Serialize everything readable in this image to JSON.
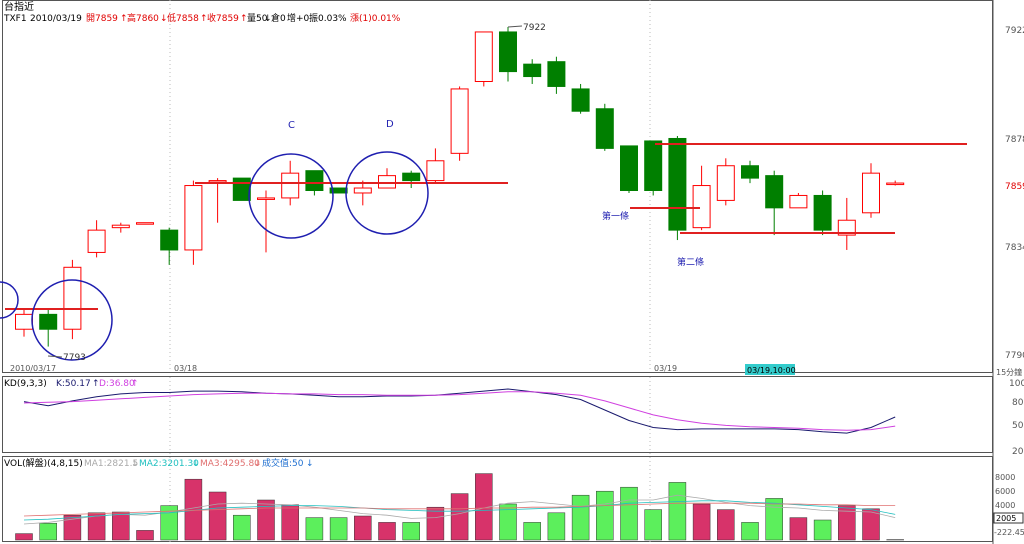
{
  "header": {
    "title": "台指近",
    "symbol": "TXF1",
    "date": "2010/03/19",
    "open_label": "開7859",
    "open_arrow": "↑",
    "high_label": "高7860",
    "high_arrow": "↓",
    "low_label": "低7858",
    "low_arrow": "↑",
    "close_label": "收7859",
    "close_arrow": "↑",
    "vol_label": "量50",
    "vol_arrow": "↓",
    "oi_label": "倉0",
    "oi_change_label": "增+0",
    "amp_label": "振0.03%",
    "chg_label": "漲(1)0.01%"
  },
  "kd_panel": {
    "label": "KD(9,3,3)",
    "k_label": "K:50.17",
    "k_arrow": "↑",
    "d_label": "D:36.80",
    "d_arrow": "↑"
  },
  "vol_panel": {
    "label": "VOL(解盤)(4,8,15)",
    "ma1_label": "MA1:2821.5",
    "ma1_arrow": "↓",
    "ma2_label": "MA2:3201.30",
    "ma2_arrow": "↓",
    "ma3_label": "MA3:4295.80",
    "ma3_arrow": "↓",
    "vol_value_label": "成交值:50",
    "vol_value_arrow": "↓"
  },
  "xaxis": {
    "date1": "2010/03/17",
    "date2": "03/18",
    "date3": "03/19",
    "cursor_label": "03/19,10:00",
    "interval_label": "15分鐘"
  },
  "annotations": {
    "c": "C",
    "d": "D",
    "high_label": "7922",
    "low_label": "7793",
    "first_line": "第一條",
    "second_line": "第二條"
  },
  "colors": {
    "up": "#ff0000",
    "down": "#007f00",
    "vol_up": "#d7336a",
    "vol_down": "#5cef5c",
    "k_line": "#1a1a6e",
    "d_line": "#d040e0",
    "circle": "#1f1fb0",
    "hline": "#e02020",
    "cursor_bg": "#33cccc"
  },
  "chart_data": {
    "type": "candlestick",
    "price_axis_ticks": [
      7922,
      7878,
      7859,
      7834,
      7790
    ],
    "kd_axis_ticks": [
      100,
      80,
      50,
      20
    ],
    "vol_axis_ticks": [
      8000,
      6000,
      4000,
      2005
    ],
    "vol_cursor_value": "2005",
    "vol_bottom_value": "-222.45",
    "candles": [
      {
        "o": 7800,
        "c": 7806,
        "h": 7808,
        "l": 7797
      },
      {
        "o": 7806,
        "c": 7800,
        "h": 7808,
        "l": 7793
      },
      {
        "o": 7800,
        "c": 7825,
        "h": 7828,
        "l": 7796
      },
      {
        "o": 7831,
        "c": 7840,
        "h": 7844,
        "l": 7829
      },
      {
        "o": 7841,
        "c": 7842,
        "h": 7843,
        "l": 7839
      },
      {
        "o": 7843,
        "c": 7843,
        "h": 7843,
        "l": 7843
      },
      {
        "o": 7840,
        "c": 7832,
        "h": 7841,
        "l": 7826
      },
      {
        "o": 7832,
        "c": 7858,
        "h": 7860,
        "l": 7826
      },
      {
        "o": 7860,
        "c": 7860,
        "h": 7861,
        "l": 7843
      },
      {
        "o": 7861,
        "c": 7852,
        "h": 7861,
        "l": 7852
      },
      {
        "o": 7853,
        "c": 7853,
        "h": 7856,
        "l": 7831
      },
      {
        "o": 7853,
        "c": 7863,
        "h": 7868,
        "l": 7850
      },
      {
        "o": 7864,
        "c": 7856,
        "h": 7864,
        "l": 7854
      },
      {
        "o": 7857,
        "c": 7855,
        "h": 7857,
        "l": 7855
      },
      {
        "o": 7855,
        "c": 7857,
        "h": 7860,
        "l": 7850
      },
      {
        "o": 7857,
        "c": 7862,
        "h": 7865,
        "l": 7858
      },
      {
        "o": 7863,
        "c": 7860,
        "h": 7864,
        "l": 7857
      },
      {
        "o": 7860,
        "c": 7868,
        "h": 7873,
        "l": 7859
      },
      {
        "o": 7871,
        "c": 7897,
        "h": 7898,
        "l": 7868
      },
      {
        "o": 7900,
        "c": 7920,
        "h": 7920,
        "l": 7898
      },
      {
        "o": 7920,
        "c": 7904,
        "h": 7922,
        "l": 7900
      },
      {
        "o": 7907,
        "c": 7902,
        "h": 7909,
        "l": 7899
      },
      {
        "o": 7908,
        "c": 7898,
        "h": 7910,
        "l": 7895
      },
      {
        "o": 7897,
        "c": 7888,
        "h": 7899,
        "l": 7887
      },
      {
        "o": 7889,
        "c": 7873,
        "h": 7891,
        "l": 7872
      },
      {
        "o": 7874,
        "c": 7856,
        "h": 7874,
        "l": 7855
      },
      {
        "o": 7876,
        "c": 7856,
        "h": 7876,
        "l": 7854
      },
      {
        "o": 7877,
        "c": 7840,
        "h": 7878,
        "l": 7836
      },
      {
        "o": 7841,
        "c": 7858,
        "h": 7866,
        "l": 7840
      },
      {
        "o": 7852,
        "c": 7866,
        "h": 7869,
        "l": 7850
      },
      {
        "o": 7866,
        "c": 7861,
        "h": 7868,
        "l": 7859
      },
      {
        "o": 7862,
        "c": 7849,
        "h": 7864,
        "l": 7838
      },
      {
        "o": 7849,
        "c": 7854,
        "h": 7855,
        "l": 7849
      },
      {
        "o": 7854,
        "c": 7840,
        "h": 7856,
        "l": 7838
      },
      {
        "o": 7838,
        "c": 7844,
        "h": 7853,
        "l": 7832
      },
      {
        "o": 7847,
        "c": 7863,
        "h": 7867,
        "l": 7845
      },
      {
        "o": 7859,
        "c": 7859,
        "h": 7860,
        "l": 7858
      }
    ],
    "k_values": [
      72,
      66,
      73,
      79,
      83,
      85,
      85,
      87,
      87,
      86,
      84,
      83,
      81,
      79,
      79,
      80,
      80,
      81,
      84,
      87,
      90,
      86,
      82,
      75,
      60,
      45,
      35,
      32,
      33,
      33,
      33,
      33,
      32,
      29,
      27,
      35,
      50
    ],
    "d_values": [
      70,
      71,
      72,
      74,
      76,
      78,
      80,
      82,
      83,
      84,
      84,
      83,
      83,
      82,
      82,
      81,
      81,
      81,
      82,
      84,
      86,
      86,
      84,
      81,
      73,
      63,
      53,
      46,
      41,
      38,
      36,
      35,
      34,
      32,
      31,
      32,
      37
    ],
    "volumes": [
      800,
      2100,
      3100,
      3400,
      3500,
      1200,
      4300,
      7600,
      6000,
      3100,
      5000,
      4400,
      2800,
      2800,
      3000,
      2200,
      2200,
      4100,
      5800,
      8300,
      4500,
      2200,
      3400,
      5600,
      6100,
      6600,
      3800,
      7200,
      4500,
      3800,
      2200,
      5200,
      2800,
      2500,
      4300,
      3900,
      50
    ],
    "vol_ma1": [
      2000,
      2200,
      2600,
      3000,
      3200,
      3100,
      3500,
      4000,
      4500,
      4600,
      4500,
      4400,
      4100,
      3700,
      3300,
      3100,
      2700,
      2800,
      3300,
      4000,
      4600,
      4800,
      4500,
      4200,
      4500,
      5000,
      5000,
      5600,
      5200,
      4700,
      4300,
      4100,
      4000,
      3700,
      3600,
      3500,
      2800
    ],
    "vol_ma2": [
      2500,
      2600,
      2800,
      3000,
      3200,
      3300,
      3400,
      3700,
      4000,
      4100,
      4200,
      4300,
      4300,
      4200,
      4000,
      3800,
      3700,
      3600,
      3600,
      3700,
      3800,
      3900,
      4000,
      4100,
      4300,
      4600,
      4700,
      4800,
      4900,
      4900,
      4700,
      4600,
      4400,
      4200,
      4000,
      3800,
      3200
    ],
    "vol_ma3": [
      3000,
      3100,
      3200,
      3300,
      3400,
      3500,
      3600,
      3700,
      3800,
      3900,
      4000,
      4000,
      4000,
      4000,
      4000,
      3900,
      3900,
      3900,
      3900,
      4000,
      4000,
      4100,
      4100,
      4200,
      4300,
      4400,
      4500,
      4600,
      4600,
      4600,
      4600,
      4500,
      4500,
      4400,
      4400,
      4300,
      4300
    ]
  }
}
